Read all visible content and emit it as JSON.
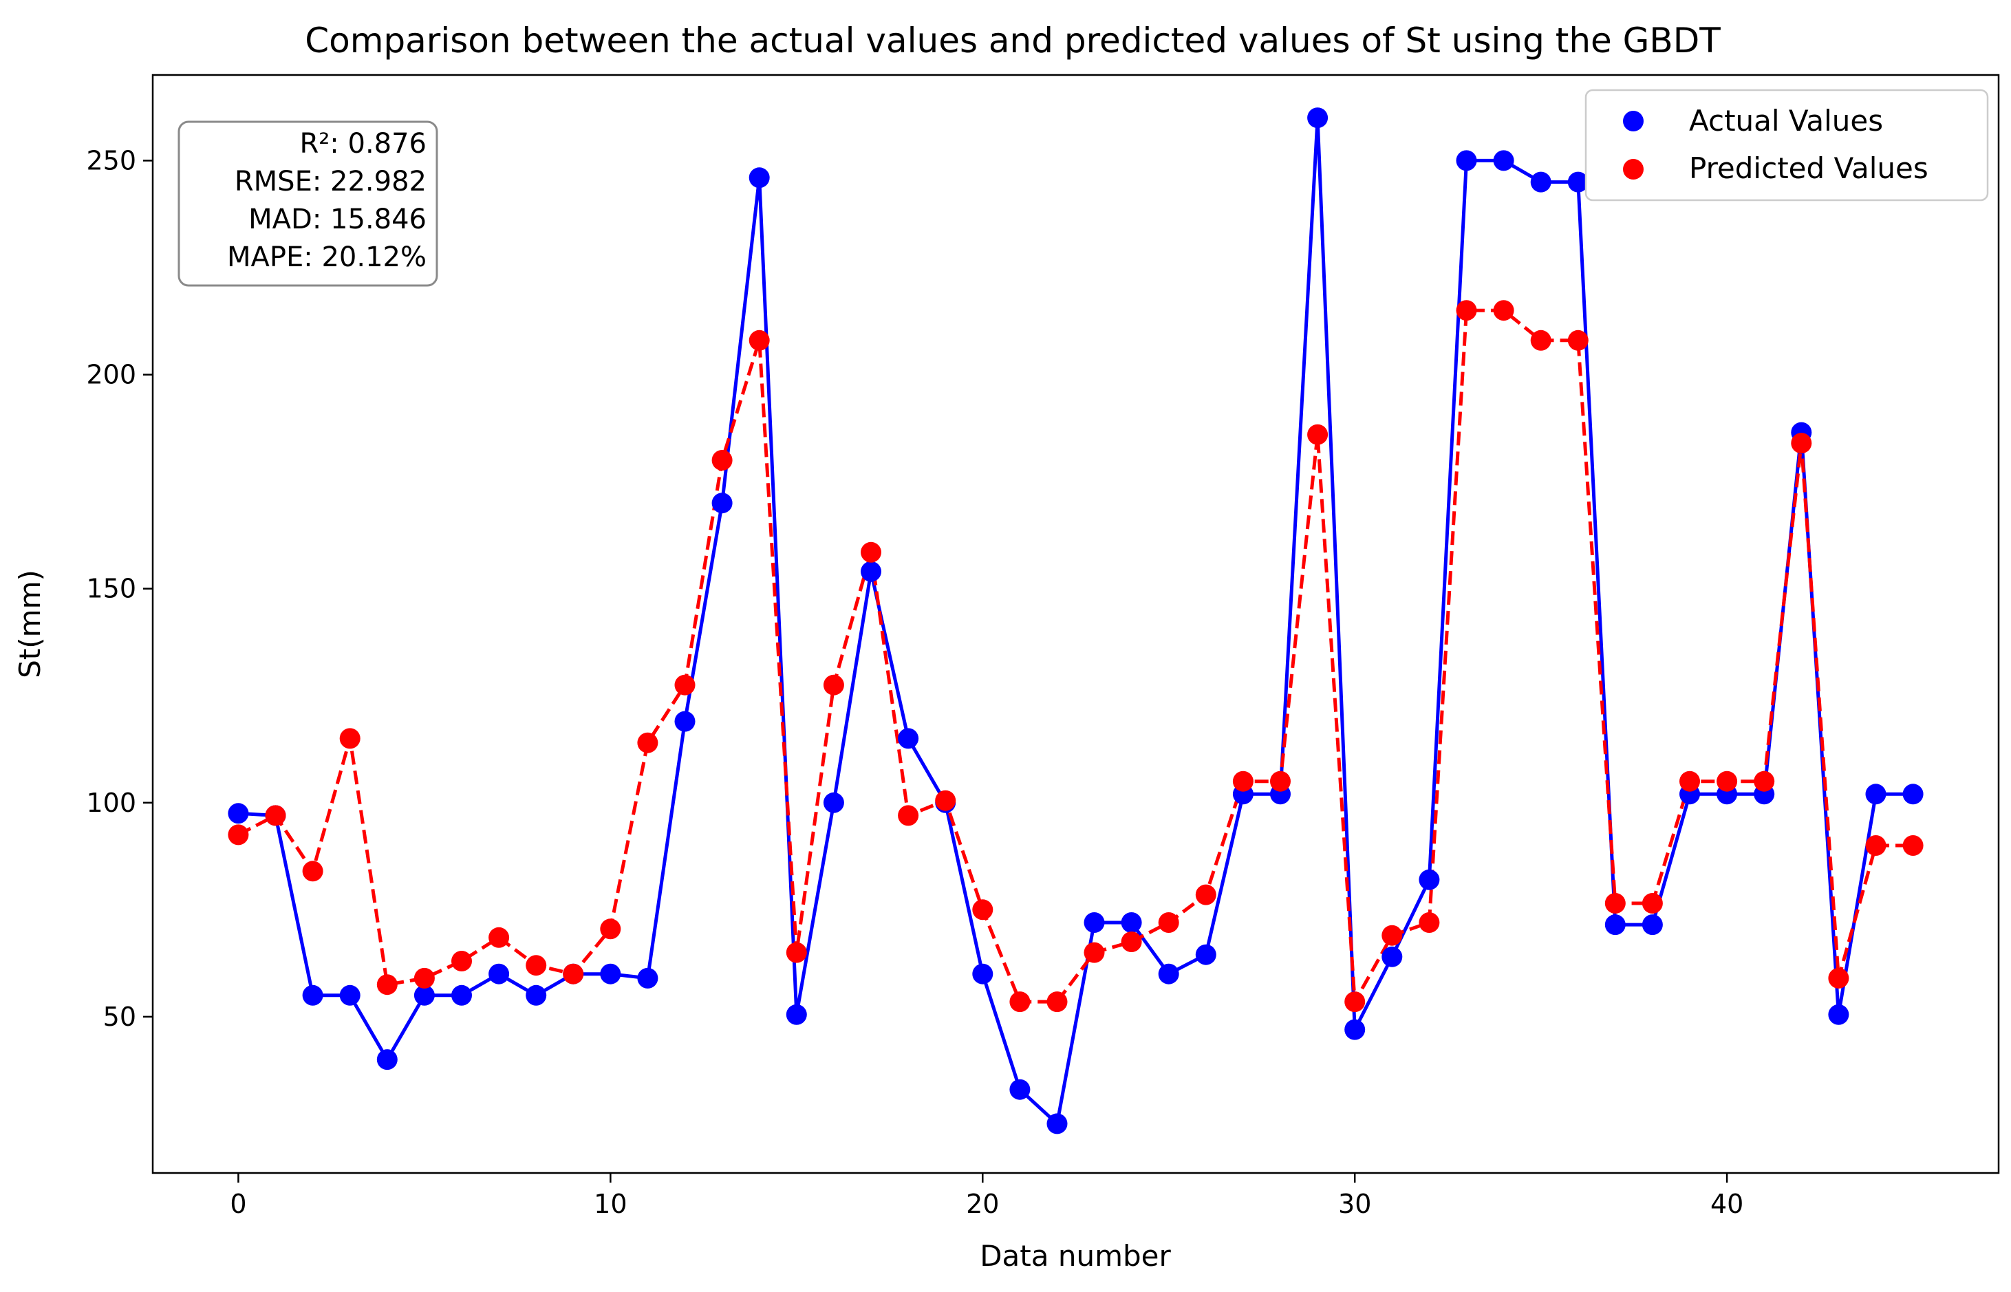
{
  "chart_data": {
    "type": "line",
    "title": "Comparison between the actual values and predicted values of St using the GBDT",
    "xlabel": "Data number",
    "ylabel": "St(mm)",
    "xlim": [
      -2.3,
      47.3
    ],
    "ylim": [
      13.5,
      270
    ],
    "x_ticks": [
      0,
      10,
      20,
      30,
      40
    ],
    "y_ticks": [
      50,
      100,
      150,
      200,
      250
    ],
    "grid": false,
    "legend_position": "top-right",
    "x": [
      0,
      1,
      2,
      3,
      4,
      5,
      6,
      7,
      8,
      9,
      10,
      11,
      12,
      13,
      14,
      15,
      16,
      17,
      18,
      19,
      20,
      21,
      22,
      23,
      24,
      25,
      26,
      27,
      28,
      29,
      30,
      31,
      32,
      33,
      34,
      35,
      36,
      37,
      38,
      39,
      40,
      41,
      42,
      43,
      44,
      45
    ],
    "series": [
      {
        "name": "Actual Values",
        "color": "#0000ff",
        "line_style": "solid",
        "values": [
          97.5,
          97,
          55,
          55,
          40,
          55,
          55,
          60,
          55,
          60,
          60,
          59,
          119,
          170,
          246,
          50.5,
          100,
          154,
          115,
          100,
          60,
          33,
          25,
          72,
          72,
          60,
          64.5,
          102,
          102,
          260,
          47,
          64,
          82,
          250,
          250,
          245,
          245,
          71.5,
          71.5,
          102,
          102,
          102,
          186.5,
          50.5,
          102,
          102
        ]
      },
      {
        "name": "Predicted Values",
        "color": "#ff0000",
        "line_style": "dashed",
        "values": [
          92.5,
          97,
          84,
          115,
          57.5,
          59,
          63,
          68.5,
          62,
          60,
          70.5,
          114,
          127.5,
          180,
          208,
          65,
          127.5,
          158.5,
          97,
          100.5,
          75,
          53.5,
          53.5,
          65,
          67.5,
          72,
          78.5,
          105,
          105,
          186,
          53.5,
          69,
          72,
          215,
          215,
          208,
          208,
          76.5,
          76.5,
          105,
          105,
          105,
          184,
          59,
          90,
          90
        ]
      }
    ],
    "annotation": {
      "lines": [
        "R²: 0.876",
        "RMSE: 22.982",
        "MAD: 15.846",
        "MAPE: 20.12%"
      ],
      "position": "top-left"
    }
  }
}
